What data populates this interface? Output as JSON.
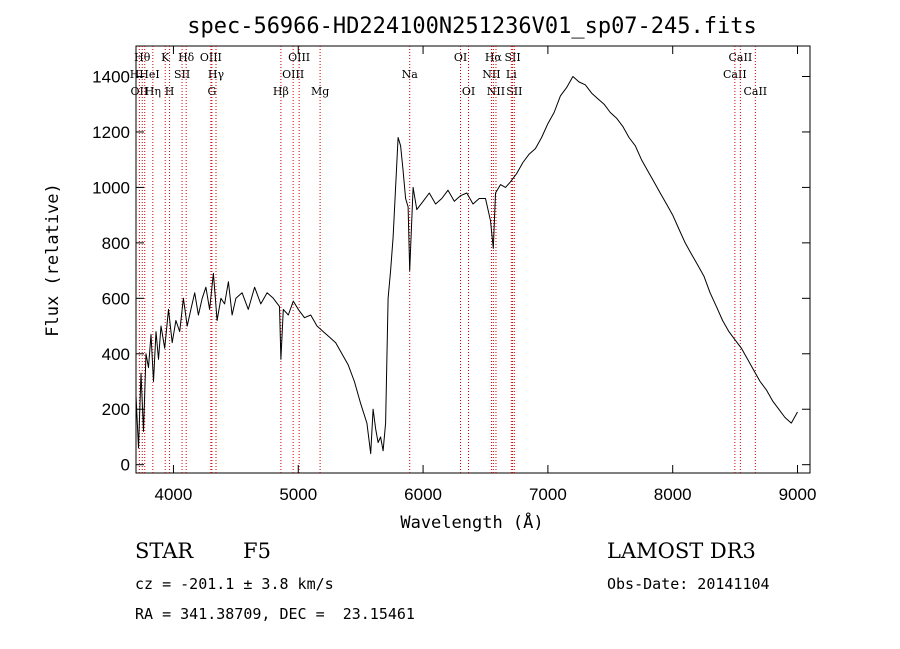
{
  "chart_data": {
    "type": "line",
    "title": "spec-56966-HD224100N251236V01_sp07-245.fits",
    "xlabel": "Wavelength (Å)",
    "ylabel": "Flux (relative)",
    "xlim": [
      3700,
      9100
    ],
    "ylim": [
      -30,
      1510
    ],
    "xticks": [
      4000,
      5000,
      6000,
      7000,
      8000,
      9000
    ],
    "yticks": [
      0,
      200,
      400,
      600,
      800,
      1000,
      1200,
      1400
    ],
    "spectral_lines": [
      {
        "label": "OII",
        "x": 3727,
        "row": 2
      },
      {
        "label": "Hθ",
        "x": 3750,
        "row": 0
      },
      {
        "label": "HHeI",
        "x": 3770,
        "row": 1
      },
      {
        "label": "Hη",
        "x": 3835,
        "row": 2
      },
      {
        "label": "K",
        "x": 3934,
        "row": 0
      },
      {
        "label": "H",
        "x": 3969,
        "row": 2
      },
      {
        "label": "SII",
        "x": 4069,
        "row": 1
      },
      {
        "label": "Hδ",
        "x": 4102,
        "row": 0
      },
      {
        "label": "OIII",
        "x": 4300,
        "row": 0
      },
      {
        "label": "Hγ",
        "x": 4341,
        "row": 1
      },
      {
        "label": "G",
        "x": 4308,
        "row": 2
      },
      {
        "label": "Hβ",
        "x": 4861,
        "row": 2
      },
      {
        "label": "OIII",
        "x": 4959,
        "row": 1
      },
      {
        "label": "OIII",
        "x": 5007,
        "row": 0
      },
      {
        "label": "Mg",
        "x": 5175,
        "row": 2
      },
      {
        "label": "Na",
        "x": 5893,
        "row": 1
      },
      {
        "label": "OI",
        "x": 6300,
        "row": 0
      },
      {
        "label": "OI",
        "x": 6364,
        "row": 2
      },
      {
        "label": "NII",
        "x": 6548,
        "row": 1
      },
      {
        "label": "NII",
        "x": 6584,
        "row": 2
      },
      {
        "label": "Hα",
        "x": 6563,
        "row": 0
      },
      {
        "label": "SII",
        "x": 6717,
        "row": 0
      },
      {
        "label": "SII",
        "x": 6731,
        "row": 2
      },
      {
        "label": "Li",
        "x": 6707,
        "row": 1
      },
      {
        "label": "CaII",
        "x": 8498,
        "row": 1
      },
      {
        "label": "CaII",
        "x": 8542,
        "row": 0
      },
      {
        "label": "CaII",
        "x": 8662,
        "row": 2
      }
    ],
    "series": [
      {
        "name": "flux",
        "x": [
          3700,
          3720,
          3740,
          3760,
          3780,
          3800,
          3820,
          3840,
          3860,
          3880,
          3900,
          3930,
          3960,
          3990,
          4020,
          4050,
          4080,
          4110,
          4140,
          4170,
          4200,
          4230,
          4260,
          4290,
          4320,
          4350,
          4380,
          4410,
          4440,
          4470,
          4500,
          4550,
          4600,
          4650,
          4700,
          4750,
          4800,
          4850,
          4861,
          4880,
          4920,
          4960,
          5000,
          5050,
          5100,
          5150,
          5200,
          5250,
          5300,
          5350,
          5400,
          5450,
          5500,
          5550,
          5580,
          5600,
          5620,
          5640,
          5660,
          5680,
          5700,
          5720,
          5740,
          5760,
          5780,
          5800,
          5820,
          5840,
          5860,
          5880,
          5893,
          5920,
          5950,
          6000,
          6050,
          6100,
          6150,
          6200,
          6250,
          6300,
          6350,
          6400,
          6450,
          6500,
          6540,
          6563,
          6580,
          6620,
          6660,
          6700,
          6750,
          6800,
          6850,
          6900,
          6950,
          7000,
          7050,
          7100,
          7150,
          7200,
          7250,
          7300,
          7350,
          7400,
          7450,
          7500,
          7550,
          7600,
          7650,
          7700,
          7750,
          7800,
          7850,
          7900,
          7950,
          8000,
          8050,
          8100,
          8150,
          8200,
          8250,
          8300,
          8350,
          8400,
          8450,
          8500,
          8550,
          8600,
          8650,
          8700,
          8750,
          8800,
          8850,
          8900,
          8950,
          9000
        ],
        "values": [
          250,
          60,
          330,
          120,
          400,
          350,
          470,
          300,
          480,
          380,
          500,
          420,
          560,
          440,
          520,
          480,
          600,
          500,
          560,
          620,
          540,
          600,
          640,
          560,
          690,
          520,
          600,
          580,
          660,
          540,
          600,
          620,
          560,
          640,
          580,
          620,
          600,
          570,
          380,
          560,
          540,
          590,
          560,
          530,
          540,
          500,
          480,
          460,
          440,
          400,
          360,
          300,
          220,
          150,
          40,
          200,
          130,
          80,
          100,
          50,
          150,
          600,
          700,
          820,
          1000,
          1180,
          1150,
          1060,
          960,
          930,
          700,
          1000,
          920,
          950,
          980,
          940,
          960,
          990,
          950,
          970,
          980,
          940,
          960,
          960,
          880,
          780,
          980,
          1010,
          1000,
          1020,
          1050,
          1090,
          1120,
          1140,
          1180,
          1230,
          1270,
          1330,
          1360,
          1400,
          1380,
          1370,
          1340,
          1320,
          1300,
          1270,
          1250,
          1220,
          1180,
          1150,
          1100,
          1060,
          1020,
          980,
          940,
          900,
          850,
          800,
          760,
          720,
          680,
          620,
          570,
          520,
          480,
          450,
          420,
          380,
          340,
          300,
          270,
          230,
          200,
          170,
          150,
          190
        ]
      }
    ]
  },
  "info": {
    "object_class": "STAR",
    "subclass": "F5",
    "survey": "LAMOST DR3",
    "cz": "cz = -201.1 ± 3.8 km/s",
    "obs_date": "Obs-Date: 20141104",
    "coords": "RA = 341.38709, DEC =  23.15461"
  }
}
